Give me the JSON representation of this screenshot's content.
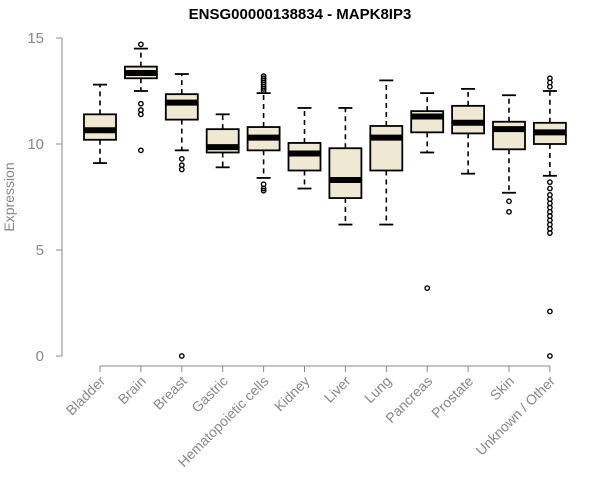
{
  "chart_data": {
    "type": "boxplot",
    "title": "ENSG00000138834 - MAPK8IP3",
    "ylabel": "Expression",
    "xlabel": "",
    "ylim": [
      0,
      15
    ],
    "yticks": [
      0,
      5,
      10,
      15
    ],
    "grid": false,
    "box_fill": "#efe9d3",
    "categories": [
      "Bladder",
      "Brain",
      "Breast",
      "Gastric",
      "Hematopoietic cells",
      "Kidney",
      "Liver",
      "Lung",
      "Pancreas",
      "Prostate",
      "Skin",
      "Unknown / Other"
    ],
    "boxes": [
      {
        "whisker_low": 9.1,
        "q1": 10.2,
        "median": 10.65,
        "q3": 11.4,
        "whisker_high": 12.8,
        "outliers": []
      },
      {
        "whisker_low": 12.5,
        "q1": 13.1,
        "median": 13.35,
        "q3": 13.65,
        "whisker_high": 14.5,
        "outliers": [
          14.7,
          11.9,
          11.6,
          11.4,
          9.7
        ]
      },
      {
        "whisker_low": 9.7,
        "q1": 11.15,
        "median": 11.95,
        "q3": 12.35,
        "whisker_high": 13.3,
        "outliers": [
          9.3,
          9.0,
          8.8,
          0.0
        ]
      },
      {
        "whisker_low": 8.9,
        "q1": 9.6,
        "median": 9.85,
        "q3": 10.7,
        "whisker_high": 11.4,
        "outliers": []
      },
      {
        "whisker_low": 8.4,
        "q1": 9.7,
        "median": 10.3,
        "q3": 10.8,
        "whisker_high": 12.4,
        "outliers": [
          13.2,
          13.1,
          13.0,
          12.9,
          12.8,
          12.7,
          12.6,
          12.5,
          8.1,
          7.9,
          7.8
        ]
      },
      {
        "whisker_low": 7.9,
        "q1": 8.75,
        "median": 9.55,
        "q3": 10.05,
        "whisker_high": 11.7,
        "outliers": []
      },
      {
        "whisker_low": 6.2,
        "q1": 7.45,
        "median": 8.3,
        "q3": 9.8,
        "whisker_high": 11.7,
        "outliers": []
      },
      {
        "whisker_low": 6.2,
        "q1": 8.75,
        "median": 10.3,
        "q3": 10.85,
        "whisker_high": 13.0,
        "outliers": []
      },
      {
        "whisker_low": 9.6,
        "q1": 10.55,
        "median": 11.3,
        "q3": 11.55,
        "whisker_high": 12.4,
        "outliers": [
          3.2
        ]
      },
      {
        "whisker_low": 8.6,
        "q1": 10.5,
        "median": 11.0,
        "q3": 11.8,
        "whisker_high": 12.6,
        "outliers": []
      },
      {
        "whisker_low": 7.7,
        "q1": 9.75,
        "median": 10.7,
        "q3": 11.05,
        "whisker_high": 12.3,
        "outliers": [
          7.3,
          6.8
        ]
      },
      {
        "whisker_low": 8.5,
        "q1": 10.0,
        "median": 10.55,
        "q3": 11.0,
        "whisker_high": 12.5,
        "outliers": [
          13.1,
          12.9,
          12.7,
          8.2,
          7.9,
          7.6,
          7.4,
          7.2,
          7.0,
          6.8,
          6.6,
          6.4,
          6.2,
          6.0,
          5.8,
          2.1,
          0.0
        ]
      }
    ]
  }
}
